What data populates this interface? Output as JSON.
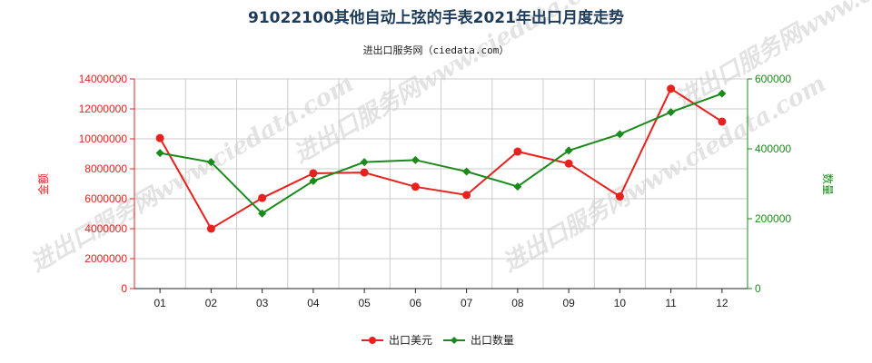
{
  "chart_data": {
    "type": "line",
    "title": "91022100其他自动上弦的手表2021年出口月度走势",
    "subtitle": "进出口服务网（ciedata.com）",
    "categories": [
      "01",
      "02",
      "03",
      "04",
      "05",
      "06",
      "07",
      "08",
      "09",
      "10",
      "11",
      "12"
    ],
    "y_left": {
      "label": "金额",
      "range": [
        0,
        14000000
      ],
      "ticks": [
        "0",
        "2000000",
        "4000000",
        "6000000",
        "8000000",
        "10000000",
        "12000000",
        "14000000"
      ]
    },
    "y_right": {
      "label": "数量",
      "range": [
        0,
        600000
      ],
      "ticks": [
        "0",
        "200000",
        "400000",
        "600000"
      ]
    },
    "series": [
      {
        "name": "出口美元",
        "axis": "left",
        "color": "#e8211f",
        "marker": "circle",
        "values": [
          10050000,
          4000000,
          6050000,
          7700000,
          7750000,
          6800000,
          6250000,
          9150000,
          8350000,
          6150000,
          13350000,
          11150000
        ]
      },
      {
        "name": "出口数量",
        "axis": "right",
        "color": "#1a8a1a",
        "marker": "diamond",
        "values": [
          388000,
          362000,
          215000,
          308000,
          362000,
          368000,
          335000,
          292000,
          395000,
          442000,
          505000,
          558000
        ]
      }
    ],
    "grid": true,
    "legend": "bottom"
  },
  "watermark": {
    "text": "进出口服务网www.ciedata.com"
  }
}
